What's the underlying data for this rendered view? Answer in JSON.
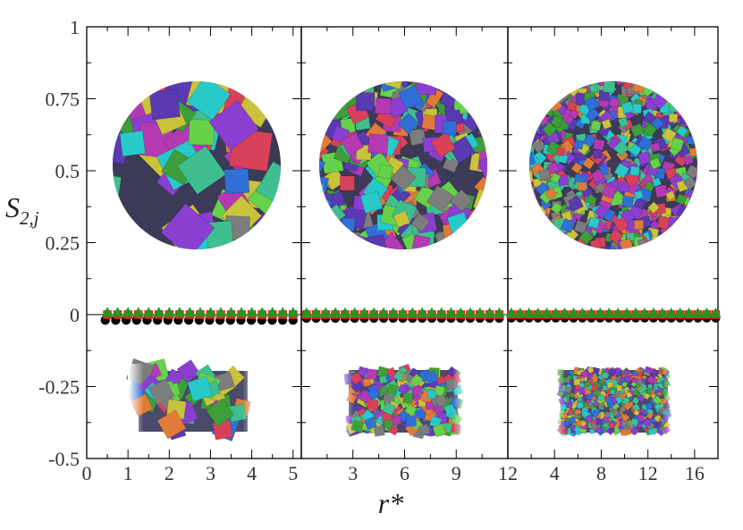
{
  "ylabel_main": "S",
  "ylabel_sub": "2,j",
  "xlabel": "r*",
  "chart_data": {
    "type": "scatter",
    "ylabel": "S2,j",
    "xlabel": "r*",
    "ylim": [
      -0.5,
      1
    ],
    "yticks": [
      1,
      0.75,
      0.5,
      0.25,
      0,
      -0.25,
      -0.5
    ],
    "ytick_labels": [
      "1",
      "0.75",
      "0.5",
      "0.25",
      "0",
      "-0.25",
      "-0.5"
    ],
    "colors": {
      "black": "#000000",
      "red": "#e8261c",
      "green": "#1f9a1f"
    },
    "panels": [
      {
        "xlim": [
          0,
          5.2
        ],
        "xticks": [
          0,
          1,
          2,
          3,
          4,
          5
        ],
        "xtick_labels": [
          "0",
          "1",
          "2",
          "3",
          "4",
          "5"
        ],
        "inset_top": "large-cubes-in-sphere",
        "inset_bottom": "large-cubes-in-slab",
        "series": [
          {
            "color": "black",
            "marker": "circle",
            "x_start": 0.45,
            "x_end": 5.0,
            "count": 19,
            "value": -0.01
          },
          {
            "color": "red",
            "marker": "square",
            "x_start": 0.5,
            "x_end": 5.0,
            "count": 19,
            "value": 0.0
          },
          {
            "color": "green",
            "marker": "triangle",
            "x_start": 0.5,
            "x_end": 5.0,
            "count": 19,
            "value": 0.005
          }
        ]
      },
      {
        "xlim": [
          0,
          12
        ],
        "xticks": [
          3,
          6,
          9,
          12
        ],
        "xtick_labels": [
          "3",
          "6",
          "9",
          "12"
        ],
        "inset_top": "medium-cubes-in-sphere",
        "inset_bottom": "medium-cubes-in-slab",
        "series": [
          {
            "color": "black",
            "marker": "circle",
            "x_start": 0.3,
            "x_end": 11.5,
            "count": 21,
            "value": -0.003
          },
          {
            "color": "red",
            "marker": "square",
            "x_start": 0.3,
            "x_end": 11.5,
            "count": 21,
            "value": 0.0
          },
          {
            "color": "green",
            "marker": "triangle",
            "x_start": 0.3,
            "x_end": 11.5,
            "count": 21,
            "value": 0.004
          }
        ]
      },
      {
        "xlim": [
          0,
          18
        ],
        "xticks": [
          4,
          8,
          12,
          16
        ],
        "xtick_labels": [
          "4",
          "8",
          "12",
          "16"
        ],
        "inset_top": "small-cubes-in-sphere",
        "inset_bottom": "small-cubes-in-slab",
        "series": [
          {
            "color": "black",
            "marker": "circle",
            "x_start": 0.3,
            "x_end": 17.8,
            "count": 24,
            "value": -0.002
          },
          {
            "color": "red",
            "marker": "square",
            "x_start": 0.3,
            "x_end": 17.8,
            "count": 24,
            "value": 0.0
          },
          {
            "color": "green",
            "marker": "triangle",
            "x_start": 0.3,
            "x_end": 17.8,
            "count": 24,
            "value": 0.003
          }
        ]
      }
    ]
  }
}
